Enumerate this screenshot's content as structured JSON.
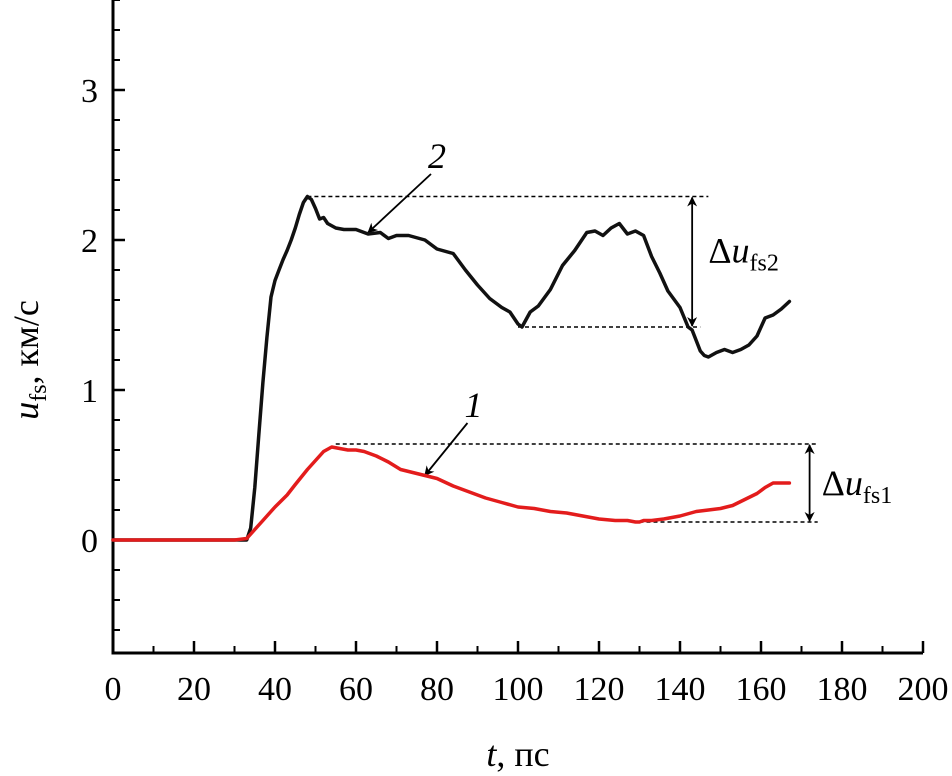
{
  "chart_data": {
    "type": "line",
    "xlabel": {
      "var": "t",
      "rest": ", пс"
    },
    "ylabel": {
      "var": "u",
      "sub": "fs",
      "rest": ", км/с"
    },
    "xlim": [
      0,
      200
    ],
    "ylim": [
      -0.75,
      3.6
    ],
    "x_ticks": [
      "0",
      "20",
      "40",
      "60",
      "80",
      "100",
      "120",
      "140",
      "160",
      "180",
      "200"
    ],
    "y_ticks": [
      {
        "v": 0,
        "label": "0"
      },
      {
        "v": 1,
        "label": "1"
      },
      {
        "v": 2,
        "label": "2"
      },
      {
        "v": 3,
        "label": "3"
      }
    ],
    "series": [
      {
        "name": "2",
        "color": "#111111",
        "x": [
          0,
          10,
          20,
          30,
          33,
          34,
          35,
          36,
          37,
          38,
          39,
          40,
          41,
          42,
          43,
          44,
          45,
          46,
          47,
          48,
          49,
          50,
          51,
          52,
          53,
          55,
          57,
          60,
          63,
          66,
          68,
          70,
          73,
          77,
          80,
          84,
          87,
          90,
          93,
          96,
          98,
          100,
          101,
          103,
          105,
          108,
          111,
          114,
          117,
          119,
          121,
          123,
          125,
          127,
          129,
          131,
          133,
          135,
          137,
          140,
          142,
          143,
          144,
          145,
          146,
          147,
          149,
          151,
          153,
          155,
          157,
          159,
          161,
          163,
          165,
          167
        ],
        "y": [
          0,
          0,
          0,
          0,
          0,
          0.08,
          0.35,
          0.7,
          1.05,
          1.35,
          1.62,
          1.73,
          1.8,
          1.87,
          1.93,
          2.0,
          2.08,
          2.17,
          2.25,
          2.29,
          2.27,
          2.21,
          2.14,
          2.15,
          2.11,
          2.08,
          2.07,
          2.07,
          2.04,
          2.05,
          2.01,
          2.03,
          2.03,
          2.0,
          1.94,
          1.91,
          1.8,
          1.7,
          1.61,
          1.55,
          1.52,
          1.44,
          1.42,
          1.52,
          1.56,
          1.67,
          1.83,
          1.93,
          2.05,
          2.06,
          2.03,
          2.08,
          2.11,
          2.04,
          2.06,
          2.03,
          1.89,
          1.78,
          1.66,
          1.55,
          1.42,
          1.4,
          1.33,
          1.26,
          1.23,
          1.22,
          1.25,
          1.27,
          1.25,
          1.27,
          1.3,
          1.36,
          1.48,
          1.5,
          1.54,
          1.59
        ]
      },
      {
        "name": "1",
        "color": "#e31c1c",
        "x": [
          0,
          10,
          20,
          30,
          33,
          35,
          37,
          40,
          43,
          45,
          48,
          50,
          52,
          54,
          56,
          58,
          60,
          62,
          65,
          68,
          71,
          74,
          77,
          80,
          84,
          88,
          92,
          96,
          100,
          104,
          108,
          112,
          116,
          120,
          124,
          127,
          129,
          130,
          131,
          133,
          136,
          140,
          144,
          147,
          150,
          153,
          156,
          159,
          161,
          163,
          165,
          167
        ],
        "y": [
          0,
          0,
          0,
          0,
          0.01,
          0.07,
          0.13,
          0.22,
          0.3,
          0.37,
          0.47,
          0.53,
          0.59,
          0.62,
          0.61,
          0.6,
          0.6,
          0.59,
          0.56,
          0.52,
          0.47,
          0.45,
          0.43,
          0.41,
          0.36,
          0.32,
          0.28,
          0.25,
          0.22,
          0.21,
          0.19,
          0.18,
          0.16,
          0.14,
          0.13,
          0.13,
          0.12,
          0.12,
          0.13,
          0.13,
          0.14,
          0.16,
          0.19,
          0.2,
          0.21,
          0.23,
          0.27,
          0.31,
          0.35,
          0.38,
          0.38,
          0.38
        ]
      }
    ],
    "annotations": [
      {
        "kind": "delta",
        "label_sym": "Δu",
        "label_sub": "fs2",
        "arrow_x": 143,
        "y_top": 2.29,
        "y_bottom": 1.42,
        "line_top_from": 48,
        "line_top_to": 147,
        "line_bottom_from": 100,
        "line_bottom_to": 145,
        "label_x": 147,
        "label_y": 1.85
      },
      {
        "kind": "delta",
        "label_sym": "Δu",
        "label_sub": "fs1",
        "arrow_x": 172,
        "y_top": 0.64,
        "y_bottom": 0.12,
        "line_top_from": 55,
        "line_top_to": 174,
        "line_bottom_from": 130,
        "line_bottom_to": 174,
        "label_x": 175,
        "label_y": 0.3
      }
    ],
    "curve_labels": [
      {
        "text": "2",
        "label_x": 80,
        "label_y": 2.48,
        "tip_x": 63,
        "tip_y": 2.05
      },
      {
        "text": "1",
        "label_x": 89,
        "label_y": 0.82,
        "tip_x": 77,
        "tip_y": 0.43
      }
    ]
  }
}
